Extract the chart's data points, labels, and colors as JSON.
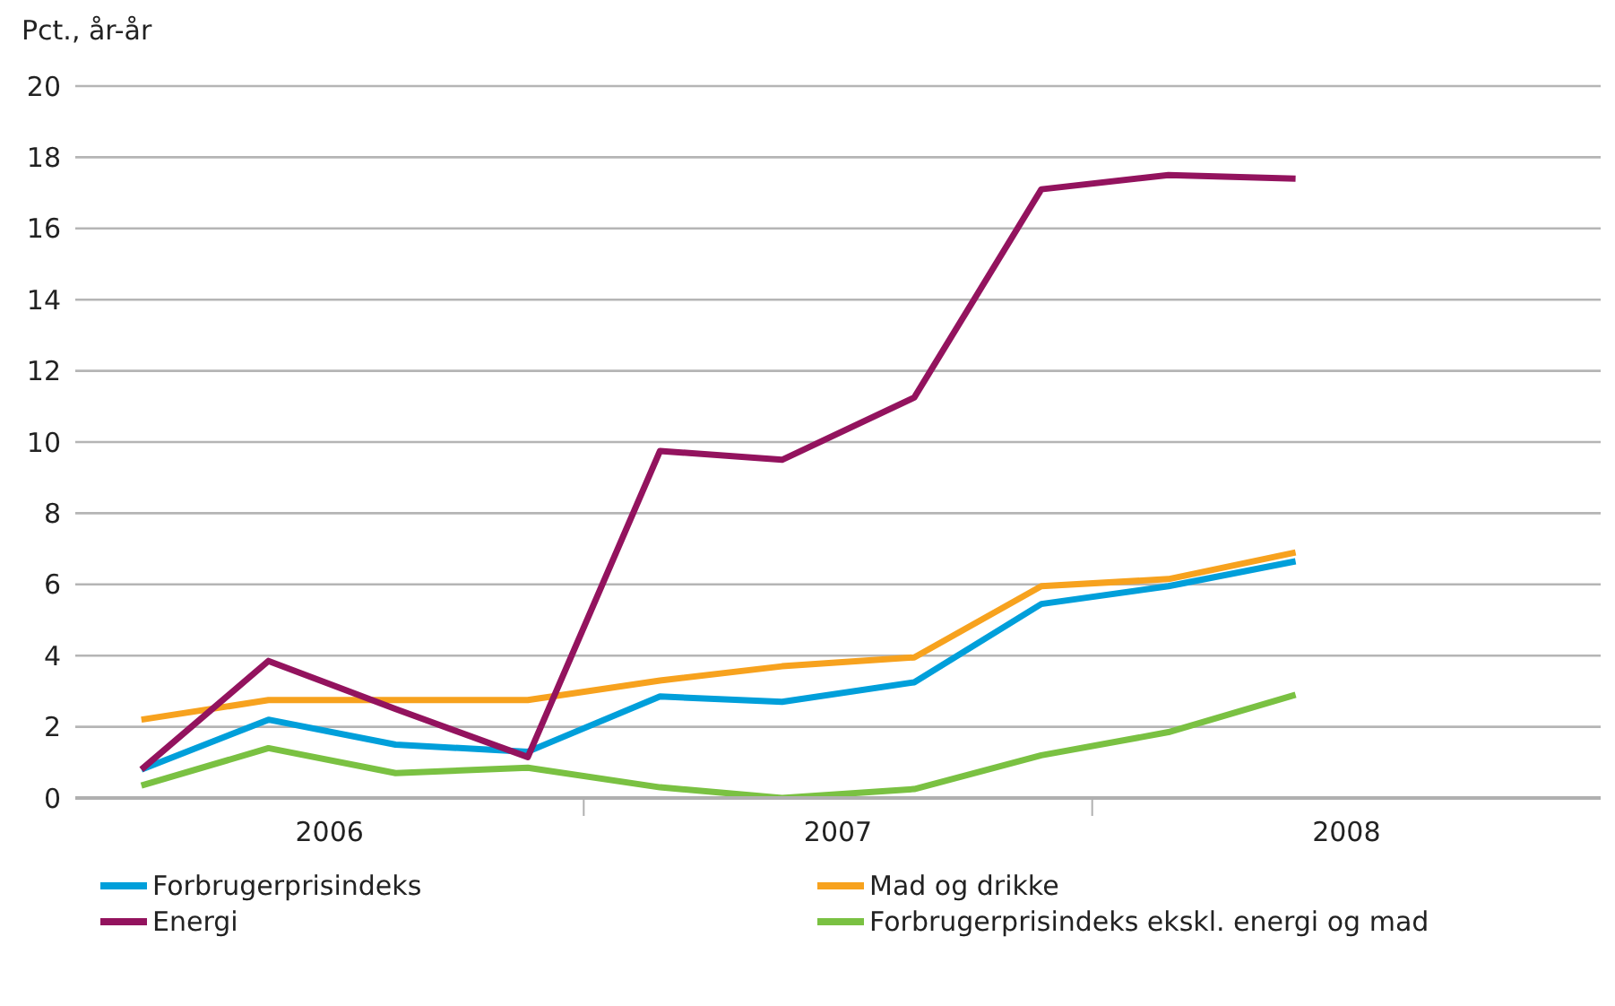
{
  "chart_data": {
    "type": "line",
    "ylabel": "Pct., år-år",
    "x": [
      2006.13,
      2006.38,
      2006.63,
      2006.89,
      2007.15,
      2007.39,
      2007.65,
      2007.9,
      2008.15,
      2008.4
    ],
    "xlim": [
      2006,
      2009
    ],
    "xticks": [
      {
        "value": 2006.5,
        "label": "2006"
      },
      {
        "value": 2007,
        "label": null
      },
      {
        "value": 2007.5,
        "label": "2007"
      },
      {
        "value": 2008,
        "label": null
      },
      {
        "value": 2008.5,
        "label": "2008"
      }
    ],
    "ylim": [
      0,
      20
    ],
    "yticks": [
      0,
      2,
      4,
      6,
      8,
      10,
      12,
      14,
      16,
      18,
      20
    ],
    "grid": "y",
    "legend": "bottom",
    "marker": "none",
    "line_style": "solid",
    "series": [
      {
        "name": "Forbrugerprisindeks",
        "color": "#009fda",
        "values": [
          0.8,
          2.2,
          1.5,
          1.3,
          2.85,
          2.7,
          3.25,
          5.45,
          5.95,
          6.65
        ]
      },
      {
        "name": "Mad og drikke",
        "color": "#f7a21e",
        "values": [
          2.2,
          2.75,
          2.75,
          2.75,
          3.3,
          3.7,
          3.95,
          5.95,
          6.15,
          6.9
        ]
      },
      {
        "name": "Energi",
        "color": "#93135e",
        "values": [
          0.8,
          3.85,
          2.5,
          1.15,
          9.75,
          9.5,
          11.25,
          17.1,
          17.5,
          17.4
        ]
      },
      {
        "name": "Forbrugerprisindeks ekskl. energi og mad",
        "color": "#7ac142",
        "values": [
          0.35,
          1.4,
          0.7,
          0.85,
          0.3,
          0.0,
          0.25,
          1.2,
          1.85,
          2.9
        ]
      }
    ]
  }
}
